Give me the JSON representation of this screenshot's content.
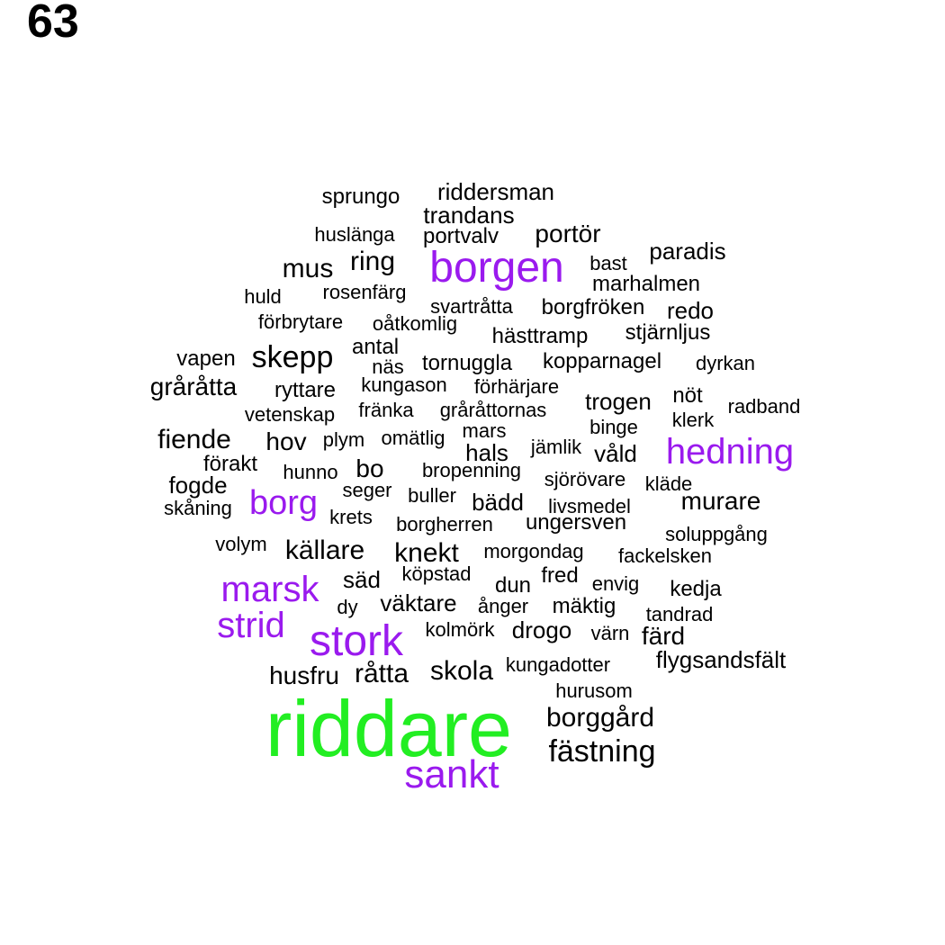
{
  "page_number": "63",
  "colors": {
    "top": "#22ee22",
    "high": "#9a1aee",
    "normal": "#000000"
  },
  "words": [
    {
      "text": "riddare",
      "tier": "top"
    },
    {
      "text": "borgen",
      "tier": "high"
    },
    {
      "text": "stork",
      "tier": "high"
    },
    {
      "text": "marsk",
      "tier": "high"
    },
    {
      "text": "sankt",
      "tier": "high"
    },
    {
      "text": "hedning",
      "tier": "high"
    },
    {
      "text": "strid",
      "tier": "high"
    },
    {
      "text": "borg",
      "tier": "high"
    },
    {
      "text": "sprungo",
      "tier": "normal"
    },
    {
      "text": "riddersman",
      "tier": "normal"
    },
    {
      "text": "trandans",
      "tier": "normal"
    },
    {
      "text": "huslänga",
      "tier": "normal"
    },
    {
      "text": "portvalv",
      "tier": "normal"
    },
    {
      "text": "portör",
      "tier": "normal"
    },
    {
      "text": "paradis",
      "tier": "normal"
    },
    {
      "text": "ring",
      "tier": "normal"
    },
    {
      "text": "mus",
      "tier": "normal"
    },
    {
      "text": "bast",
      "tier": "normal"
    },
    {
      "text": "marhalmen",
      "tier": "normal"
    },
    {
      "text": "huld",
      "tier": "normal"
    },
    {
      "text": "rosenfärg",
      "tier": "normal"
    },
    {
      "text": "svartråtta",
      "tier": "normal"
    },
    {
      "text": "borgfröken",
      "tier": "normal"
    },
    {
      "text": "redo",
      "tier": "normal"
    },
    {
      "text": "förbrytare",
      "tier": "normal"
    },
    {
      "text": "oåtkomlig",
      "tier": "normal"
    },
    {
      "text": "hästtramp",
      "tier": "normal"
    },
    {
      "text": "stjärnljus",
      "tier": "normal"
    },
    {
      "text": "antal",
      "tier": "normal"
    },
    {
      "text": "vapen",
      "tier": "normal"
    },
    {
      "text": "skepp",
      "tier": "normal"
    },
    {
      "text": "näs",
      "tier": "normal"
    },
    {
      "text": "tornuggla",
      "tier": "normal"
    },
    {
      "text": "kopparnagel",
      "tier": "normal"
    },
    {
      "text": "dyrkan",
      "tier": "normal"
    },
    {
      "text": "gråråtta",
      "tier": "normal"
    },
    {
      "text": "ryttare",
      "tier": "normal"
    },
    {
      "text": "kungason",
      "tier": "normal"
    },
    {
      "text": "förhärjare",
      "tier": "normal"
    },
    {
      "text": "trogen",
      "tier": "normal"
    },
    {
      "text": "nöt",
      "tier": "normal"
    },
    {
      "text": "radband",
      "tier": "normal"
    },
    {
      "text": "vetenskap",
      "tier": "normal"
    },
    {
      "text": "fränka",
      "tier": "normal"
    },
    {
      "text": "gråråttornas",
      "tier": "normal"
    },
    {
      "text": "binge",
      "tier": "normal"
    },
    {
      "text": "klerk",
      "tier": "normal"
    },
    {
      "text": "fiende",
      "tier": "normal"
    },
    {
      "text": "hov",
      "tier": "normal"
    },
    {
      "text": "plym",
      "tier": "normal"
    },
    {
      "text": "omätlig",
      "tier": "normal"
    },
    {
      "text": "mars",
      "tier": "normal"
    },
    {
      "text": "hals",
      "tier": "normal"
    },
    {
      "text": "jämlik",
      "tier": "normal"
    },
    {
      "text": "våld",
      "tier": "normal"
    },
    {
      "text": "förakt",
      "tier": "normal"
    },
    {
      "text": "hunno",
      "tier": "normal"
    },
    {
      "text": "bo",
      "tier": "normal"
    },
    {
      "text": "bropenning",
      "tier": "normal"
    },
    {
      "text": "sjörövare",
      "tier": "normal"
    },
    {
      "text": "kläde",
      "tier": "normal"
    },
    {
      "text": "fogde",
      "tier": "normal"
    },
    {
      "text": "seger",
      "tier": "normal"
    },
    {
      "text": "buller",
      "tier": "normal"
    },
    {
      "text": "bädd",
      "tier": "normal"
    },
    {
      "text": "livsmedel",
      "tier": "normal"
    },
    {
      "text": "murare",
      "tier": "normal"
    },
    {
      "text": "skåning",
      "tier": "normal"
    },
    {
      "text": "krets",
      "tier": "normal"
    },
    {
      "text": "borgherren",
      "tier": "normal"
    },
    {
      "text": "ungersven",
      "tier": "normal"
    },
    {
      "text": "soluppgång",
      "tier": "normal"
    },
    {
      "text": "volym",
      "tier": "normal"
    },
    {
      "text": "källare",
      "tier": "normal"
    },
    {
      "text": "knekt",
      "tier": "normal"
    },
    {
      "text": "morgondag",
      "tier": "normal"
    },
    {
      "text": "fackelsken",
      "tier": "normal"
    },
    {
      "text": "säd",
      "tier": "normal"
    },
    {
      "text": "köpstad",
      "tier": "normal"
    },
    {
      "text": "dun",
      "tier": "normal"
    },
    {
      "text": "fred",
      "tier": "normal"
    },
    {
      "text": "envig",
      "tier": "normal"
    },
    {
      "text": "kedja",
      "tier": "normal"
    },
    {
      "text": "dy",
      "tier": "normal"
    },
    {
      "text": "väktare",
      "tier": "normal"
    },
    {
      "text": "ånger",
      "tier": "normal"
    },
    {
      "text": "mäktig",
      "tier": "normal"
    },
    {
      "text": "tandrad",
      "tier": "normal"
    },
    {
      "text": "kolmörk",
      "tier": "normal"
    },
    {
      "text": "drogo",
      "tier": "normal"
    },
    {
      "text": "värn",
      "tier": "normal"
    },
    {
      "text": "färd",
      "tier": "normal"
    },
    {
      "text": "husfru",
      "tier": "normal"
    },
    {
      "text": "råtta",
      "tier": "normal"
    },
    {
      "text": "skola",
      "tier": "normal"
    },
    {
      "text": "kungadotter",
      "tier": "normal"
    },
    {
      "text": "flygsandsfält",
      "tier": "normal"
    },
    {
      "text": "hurusom",
      "tier": "normal"
    },
    {
      "text": "borggård",
      "tier": "normal"
    },
    {
      "text": "fästning",
      "tier": "normal"
    }
  ]
}
